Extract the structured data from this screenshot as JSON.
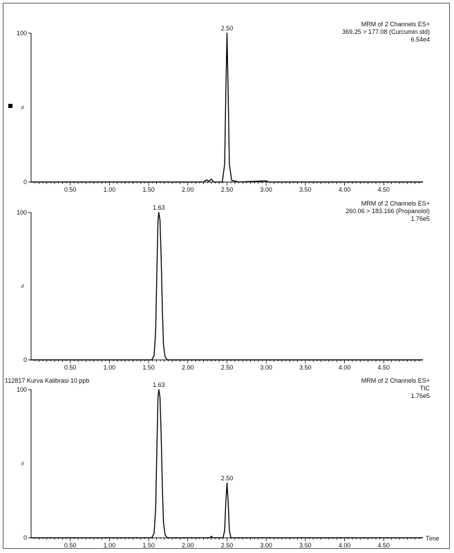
{
  "chart_data": [
    {
      "type": "line",
      "header": [
        "MRM of 2 Channels ES+",
        "369.25 > 177.08 (Curcumin std)",
        "6.54e4"
      ],
      "left_title": "",
      "y_top_label": "100",
      "y_zero_label": "0",
      "y_mid_label": "%",
      "ylim": [
        0,
        100
      ],
      "xlim": [
        0,
        5.0
      ],
      "x_ticks": [
        "0.50",
        "1.00",
        "1.50",
        "2.00",
        "2.50",
        "3.00",
        "3.50",
        "4.00",
        "4.50"
      ],
      "x_label": "",
      "peak_labels": [
        {
          "x": 2.5,
          "y": 100,
          "text": "2.50"
        }
      ],
      "points": [
        [
          0,
          0
        ],
        [
          2.2,
          0
        ],
        [
          2.24,
          1.5
        ],
        [
          2.27,
          0.5
        ],
        [
          2.3,
          2
        ],
        [
          2.33,
          0
        ],
        [
          2.44,
          0
        ],
        [
          2.47,
          12
        ],
        [
          2.485,
          60
        ],
        [
          2.5,
          100
        ],
        [
          2.515,
          60
        ],
        [
          2.53,
          12
        ],
        [
          2.56,
          1
        ],
        [
          2.62,
          0.5
        ],
        [
          2.64,
          0
        ],
        [
          3.0,
          0.8
        ],
        [
          3.03,
          0
        ],
        [
          5.0,
          0
        ]
      ]
    },
    {
      "type": "line",
      "header": [
        "MRM of 2 Channels ES+",
        "260.06 > 183.166 (Propanolol)",
        "1.76e5"
      ],
      "left_title": "",
      "y_top_label": "100",
      "y_zero_label": "0",
      "y_mid_label": "%",
      "ylim": [
        0,
        100
      ],
      "xlim": [
        0,
        5.0
      ],
      "x_ticks": [
        "0.50",
        "1.00",
        "1.50",
        "2.00",
        "2.50",
        "3.00",
        "3.50",
        "4.00",
        "4.50"
      ],
      "x_label": "",
      "peak_labels": [
        {
          "x": 1.63,
          "y": 100,
          "text": "1.63"
        }
      ],
      "points": [
        [
          0,
          0
        ],
        [
          1.54,
          0
        ],
        [
          1.57,
          3
        ],
        [
          1.59,
          20
        ],
        [
          1.605,
          60
        ],
        [
          1.62,
          95
        ],
        [
          1.63,
          100
        ],
        [
          1.645,
          95
        ],
        [
          1.66,
          70
        ],
        [
          1.675,
          35
        ],
        [
          1.69,
          10
        ],
        [
          1.71,
          2
        ],
        [
          1.74,
          0
        ],
        [
          5.0,
          0
        ]
      ]
    },
    {
      "type": "line",
      "header": [
        "MRM of 2 Channels ES+",
        "TIC",
        "1.76e5"
      ],
      "left_title": "112817 Kurva Kalibrasi 10 ppb",
      "y_top_label": "100",
      "y_zero_label": "0",
      "y_mid_label": "%",
      "ylim": [
        0,
        100
      ],
      "xlim": [
        0,
        5.0
      ],
      "x_ticks": [
        "0.50",
        "1.00",
        "1.50",
        "2.00",
        "2.50",
        "3.00",
        "3.50",
        "4.00",
        "4.50"
      ],
      "x_label": "Time",
      "peak_labels": [
        {
          "x": 1.63,
          "y": 100,
          "text": "1.63"
        },
        {
          "x": 2.5,
          "y": 37,
          "text": "2.50"
        }
      ],
      "points": [
        [
          0,
          0
        ],
        [
          1.54,
          0
        ],
        [
          1.57,
          3
        ],
        [
          1.59,
          20
        ],
        [
          1.605,
          60
        ],
        [
          1.62,
          95
        ],
        [
          1.63,
          100
        ],
        [
          1.645,
          95
        ],
        [
          1.66,
          70
        ],
        [
          1.675,
          35
        ],
        [
          1.69,
          10
        ],
        [
          1.71,
          2
        ],
        [
          1.74,
          0
        ],
        [
          2.28,
          0
        ],
        [
          2.3,
          1
        ],
        [
          2.32,
          0
        ],
        [
          2.45,
          0
        ],
        [
          2.47,
          5
        ],
        [
          2.485,
          24
        ],
        [
          2.5,
          37
        ],
        [
          2.515,
          24
        ],
        [
          2.53,
          5
        ],
        [
          2.55,
          0
        ],
        [
          5.0,
          0
        ]
      ]
    }
  ]
}
